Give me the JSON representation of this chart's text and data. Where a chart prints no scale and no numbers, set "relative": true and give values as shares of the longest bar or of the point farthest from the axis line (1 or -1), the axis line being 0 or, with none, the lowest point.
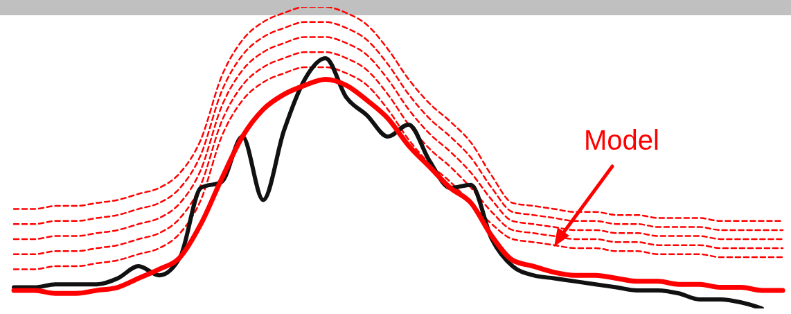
{
  "chart_data": {
    "type": "line",
    "relative": true,
    "marker": "none",
    "annotations": [
      "Model"
    ],
    "categories": [
      null,
      null,
      null,
      null,
      null,
      null,
      null,
      null,
      null,
      null,
      null,
      null,
      null,
      null,
      null,
      null,
      null,
      null,
      null,
      null,
      null,
      null,
      null,
      null,
      null,
      null,
      null,
      null,
      null,
      null,
      null,
      null,
      null,
      null,
      null,
      null,
      null,
      null
    ],
    "series": [
      {
        "color": "#ff0000",
        "line_style": "dashed",
        "values": [
          0.13,
          0.13,
          0.14,
          0.14,
          0.15,
          0.16,
          0.18,
          0.2,
          0.25,
          0.36,
          0.57,
          0.69,
          0.75,
          0.78,
          0.8,
          0.8,
          0.78,
          0.74,
          0.66,
          0.56,
          0.48,
          0.42,
          0.35,
          0.28,
          0.23,
          0.22,
          0.21,
          0.2,
          0.2,
          0.19,
          0.19,
          0.18,
          0.18,
          0.18,
          0.17,
          0.17,
          0.17,
          0.17
        ]
      },
      {
        "color": "#ff0000",
        "line_style": "dashed",
        "values": [
          0.18,
          0.18,
          0.19,
          0.19,
          0.2,
          0.21,
          0.23,
          0.25,
          0.3,
          0.41,
          0.62,
          0.74,
          0.8,
          0.83,
          0.85,
          0.85,
          0.83,
          0.79,
          0.71,
          0.61,
          0.53,
          0.47,
          0.4,
          0.32,
          0.26,
          0.25,
          0.24,
          0.23,
          0.23,
          0.22,
          0.22,
          0.21,
          0.21,
          0.21,
          0.2,
          0.2,
          0.2,
          0.2
        ]
      },
      {
        "color": "#ff0000",
        "line_style": "dashed",
        "values": [
          0.23,
          0.23,
          0.24,
          0.24,
          0.25,
          0.26,
          0.28,
          0.3,
          0.35,
          0.46,
          0.67,
          0.79,
          0.85,
          0.88,
          0.9,
          0.9,
          0.88,
          0.84,
          0.76,
          0.66,
          0.58,
          0.52,
          0.45,
          0.36,
          0.29,
          0.28,
          0.27,
          0.26,
          0.26,
          0.25,
          0.25,
          0.24,
          0.24,
          0.24,
          0.23,
          0.23,
          0.23,
          0.23
        ]
      },
      {
        "color": "#ff0000",
        "line_style": "dashed",
        "values": [
          0.28,
          0.28,
          0.29,
          0.29,
          0.3,
          0.31,
          0.33,
          0.35,
          0.4,
          0.51,
          0.72,
          0.84,
          0.9,
          0.93,
          0.95,
          0.95,
          0.93,
          0.89,
          0.81,
          0.71,
          0.63,
          0.57,
          0.5,
          0.4,
          0.32,
          0.31,
          0.3,
          0.29,
          0.29,
          0.28,
          0.28,
          0.27,
          0.27,
          0.27,
          0.26,
          0.26,
          0.26,
          0.26
        ]
      },
      {
        "color": "#ff0000",
        "line_style": "dashed",
        "values": [
          0.33,
          0.33,
          0.34,
          0.34,
          0.35,
          0.36,
          0.38,
          0.4,
          0.45,
          0.56,
          0.77,
          0.89,
          0.95,
          0.98,
          1.0,
          1.0,
          0.98,
          0.94,
          0.86,
          0.76,
          0.68,
          0.62,
          0.55,
          0.44,
          0.35,
          0.34,
          0.33,
          0.32,
          0.32,
          0.31,
          0.31,
          0.3,
          0.3,
          0.3,
          0.29,
          0.29,
          0.29,
          0.29
        ]
      },
      {
        "color": "#111111",
        "line_style": "solid",
        "values": [
          0.07,
          0.07,
          0.08,
          0.08,
          0.08,
          0.1,
          0.14,
          0.11,
          0.17,
          0.4,
          0.42,
          0.57,
          0.36,
          0.59,
          0.76,
          0.83,
          0.7,
          0.64,
          0.57,
          0.61,
          0.49,
          0.4,
          0.41,
          0.23,
          0.14,
          0.11,
          0.1,
          0.09,
          0.08,
          0.07,
          0.06,
          0.06,
          0.05,
          0.03,
          0.03,
          0.02,
          0.0,
          null
        ]
      },
      {
        "color": "#ff0000",
        "line_style": "solid",
        "values": [
          0.06,
          0.06,
          0.05,
          0.05,
          0.06,
          0.07,
          0.1,
          0.13,
          0.17,
          0.28,
          0.43,
          0.57,
          0.66,
          0.71,
          0.74,
          0.76,
          0.74,
          0.69,
          0.63,
          0.54,
          0.47,
          0.4,
          0.35,
          0.24,
          0.16,
          0.14,
          0.12,
          0.11,
          0.11,
          0.1,
          0.09,
          0.09,
          0.08,
          0.08,
          0.07,
          0.07,
          0.06,
          0.06
        ]
      }
    ]
  }
}
